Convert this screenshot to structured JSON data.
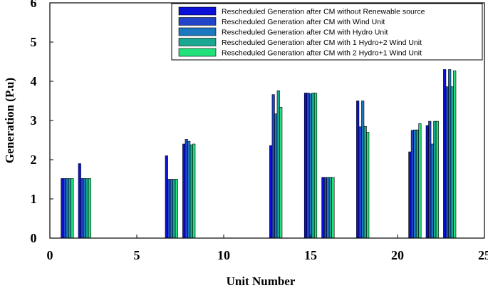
{
  "chart_data": {
    "type": "bar",
    "title": "",
    "xlabel": "Unit Number",
    "ylabel": "Generation (P.u)",
    "xlim": [
      0,
      25
    ],
    "ylim": [
      0,
      6
    ],
    "xticks": [
      0,
      5,
      10,
      15,
      20,
      25
    ],
    "yticks": [
      0,
      1,
      2,
      3,
      4,
      5,
      6
    ],
    "grid": false,
    "legend_position": "top-right",
    "categories": [
      1,
      2,
      7,
      8,
      13,
      15,
      16,
      18,
      21,
      22,
      23
    ],
    "series": [
      {
        "name": "Rescheduled Generation after CM without Renewable source",
        "color": "#0a10d8",
        "values": [
          1.52,
          1.9,
          2.1,
          2.4,
          2.36,
          3.7,
          1.55,
          3.5,
          2.2,
          2.87,
          4.3
        ]
      },
      {
        "name": "Rescheduled Generation after CM with Wind Unit",
        "color": "#2244c8",
        "values": [
          1.52,
          1.52,
          1.5,
          2.52,
          3.66,
          3.7,
          1.55,
          2.84,
          2.75,
          2.98,
          3.86
        ]
      },
      {
        "name": "Rescheduled Generation after CM with Hydro Unit",
        "color": "#1a78c0",
        "values": [
          1.52,
          1.52,
          1.5,
          2.47,
          3.17,
          3.68,
          1.55,
          3.5,
          2.76,
          2.4,
          4.3
        ]
      },
      {
        "name": "Rescheduled Generation after CM with 1 Hydro+2 Wind Unit",
        "color": "#1aa890",
        "values": [
          1.52,
          1.52,
          1.5,
          2.38,
          3.76,
          3.7,
          1.55,
          2.85,
          2.76,
          2.98,
          3.86
        ]
      },
      {
        "name": "Rescheduled Generation after CM with 2 Hydro+1 Wind Unit",
        "color": "#22e07a",
        "values": [
          1.52,
          1.52,
          1.5,
          2.4,
          3.34,
          3.7,
          1.55,
          2.7,
          2.92,
          2.98,
          4.27
        ]
      }
    ]
  }
}
